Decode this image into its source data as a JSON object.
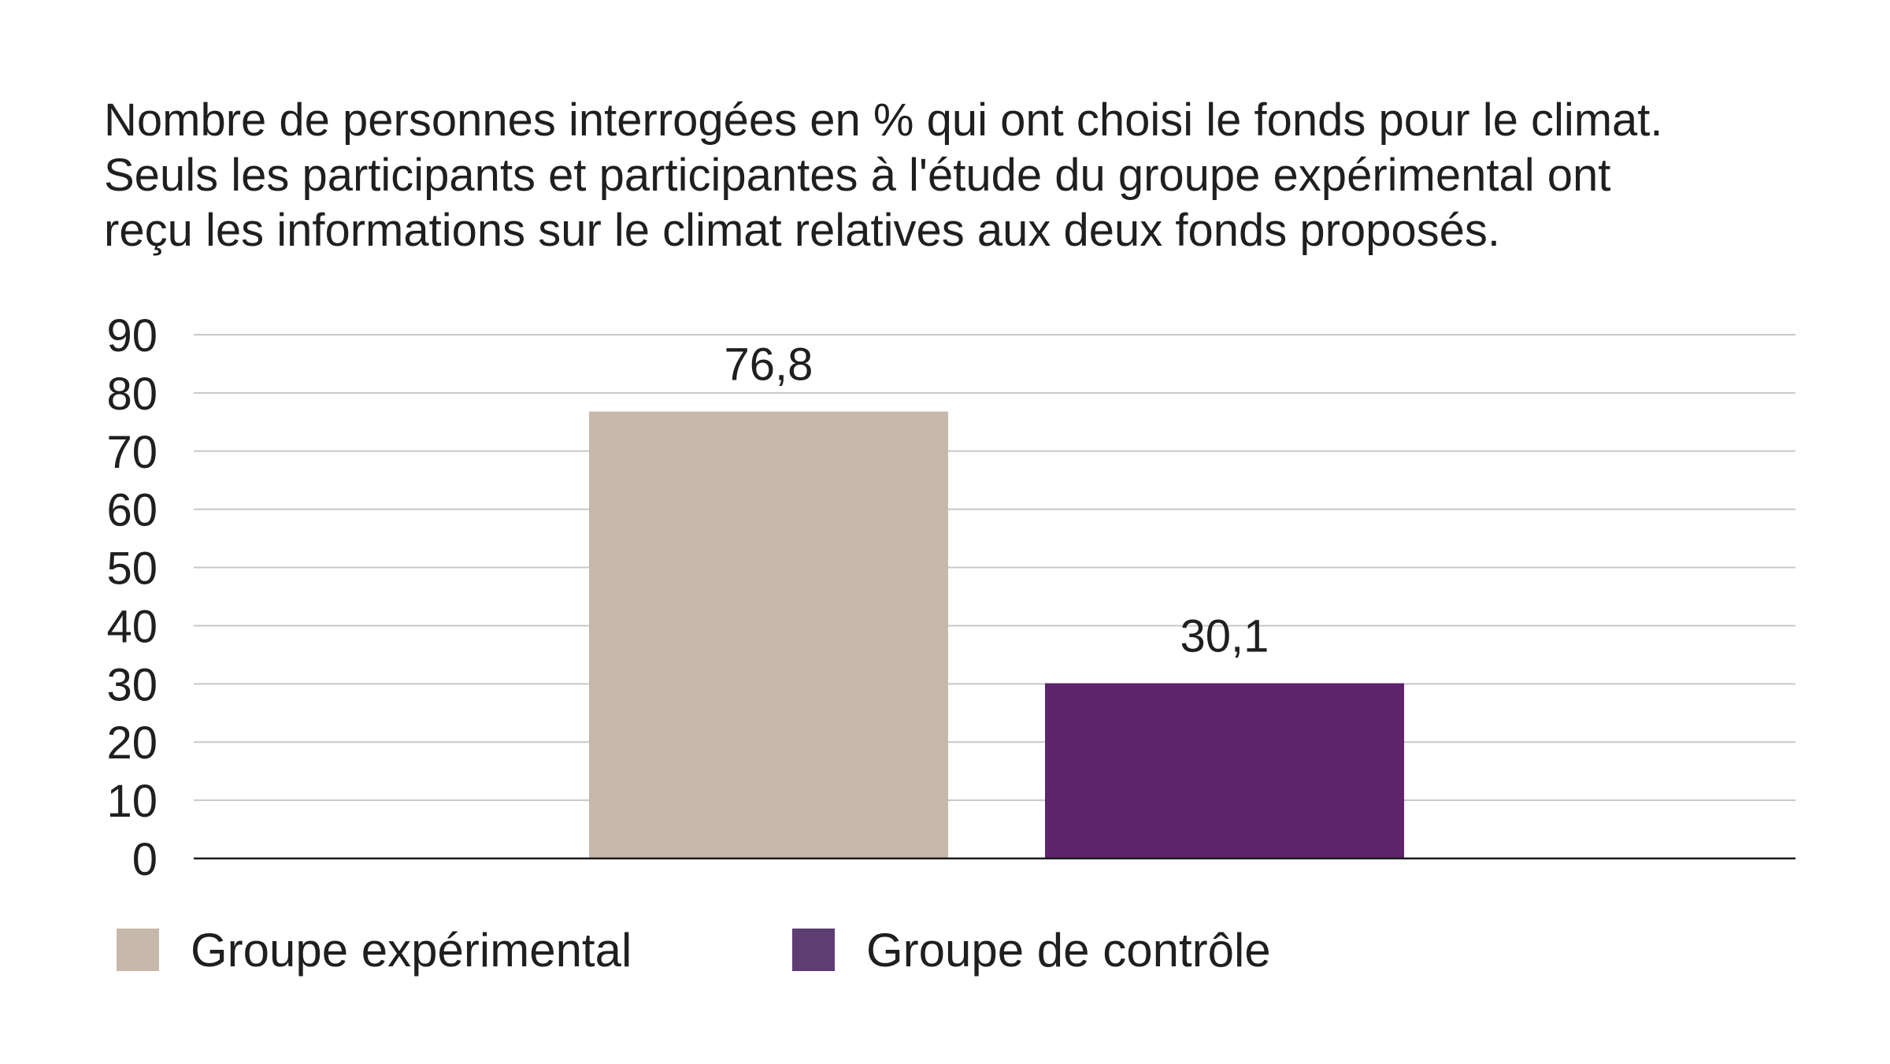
{
  "chart_data": {
    "type": "bar",
    "title_lines": [
      "Nombre de personnes interrogées en % qui ont choisi le fonds pour le climat.",
      "Seuls les participants et participantes à l'étude du groupe expérimental ont",
      "reçu les informations sur le climat relatives aux deux fonds proposés."
    ],
    "categories": [
      "Groupe expérimental",
      "Groupe de contrôle"
    ],
    "series": [
      {
        "name": "Groupe expérimental",
        "values": [
          76.8,
          null
        ],
        "color": "#c6b9ab"
      },
      {
        "name": "Groupe de contrôle",
        "values": [
          null,
          30.1
        ],
        "color": "#5e256d"
      }
    ],
    "values": [
      76.8,
      30.1
    ],
    "data_labels": [
      "76,8",
      "30,1"
    ],
    "xlabel": "",
    "ylabel": "",
    "ylim": [
      0,
      90
    ],
    "yticks": [
      0,
      10,
      20,
      30,
      40,
      50,
      60,
      70,
      80,
      90
    ],
    "grid": true,
    "legend_position": "bottom",
    "legend": [
      {
        "label": "Groupe expérimental",
        "color": "#c6b9ab"
      },
      {
        "label": "Groupe de contrôle",
        "color": "#5e256d"
      }
    ]
  }
}
